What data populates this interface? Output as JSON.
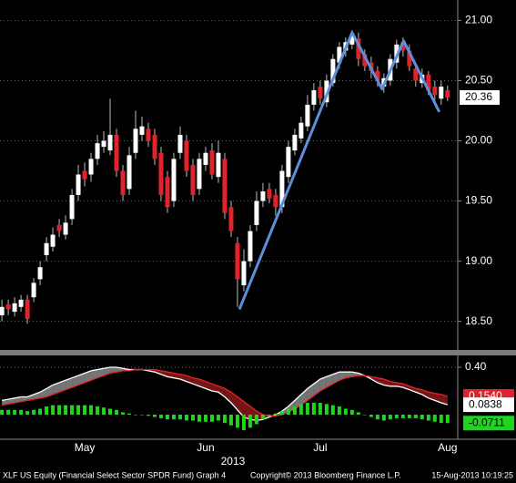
{
  "chart_data": [
    {
      "type": "candlestick",
      "categories": [
        null,
        null,
        null,
        null,
        null,
        null,
        null,
        null,
        null,
        null,
        null,
        null,
        null,
        "May",
        null,
        null,
        null,
        null,
        null,
        null,
        null,
        null,
        null,
        null,
        null,
        null,
        null,
        null,
        null,
        null,
        null,
        null,
        "Jun",
        null,
        null,
        null,
        null,
        null,
        null,
        null,
        null,
        null,
        null,
        null,
        null,
        null,
        null,
        null,
        null,
        null,
        "Jul",
        null,
        null,
        null,
        null,
        null,
        null,
        null,
        null,
        null,
        null,
        null,
        null,
        null,
        null,
        null,
        null,
        null,
        null,
        null,
        "Aug"
      ],
      "xlabel": "2013",
      "open": [
        18.55,
        18.64,
        18.58,
        18.62,
        18.68,
        18.7,
        18.85,
        19.05,
        19.12,
        19.3,
        19.22,
        19.35,
        19.55,
        19.75,
        19.72,
        19.85,
        19.95,
        19.92,
        20.05,
        19.75,
        19.6,
        19.9,
        20.05,
        20.1,
        20.05,
        19.9,
        19.7,
        19.5,
        19.9,
        20.0,
        19.8,
        19.6,
        19.8,
        19.92,
        19.7,
        19.85,
        19.45,
        19.15,
        18.8,
        19.0,
        19.3,
        19.5,
        19.6,
        19.55,
        19.45,
        19.7,
        19.92,
        20.02,
        20.12,
        20.3,
        20.45,
        20.32,
        20.48,
        20.65,
        20.75,
        20.8,
        20.85,
        20.72,
        20.65,
        20.58,
        20.45,
        20.5,
        20.65,
        20.82,
        20.75,
        20.6,
        20.48,
        20.55,
        20.45,
        20.35,
        20.42
      ],
      "high": [
        18.68,
        18.68,
        18.7,
        18.72,
        18.72,
        18.86,
        19.0,
        19.2,
        19.28,
        19.35,
        19.38,
        19.6,
        19.8,
        19.82,
        19.9,
        20.05,
        20.08,
        20.35,
        20.1,
        19.8,
        19.95,
        20.25,
        20.2,
        20.15,
        20.1,
        19.95,
        19.75,
        19.9,
        20.12,
        20.05,
        19.85,
        19.9,
        19.95,
        19.98,
        20.0,
        19.9,
        19.5,
        19.2,
        19.1,
        19.3,
        19.58,
        19.65,
        19.65,
        19.6,
        19.8,
        20.0,
        20.1,
        20.2,
        20.38,
        20.48,
        20.5,
        20.55,
        20.72,
        20.82,
        20.86,
        20.92,
        20.9,
        20.76,
        20.7,
        20.62,
        20.56,
        20.72,
        20.84,
        20.86,
        20.8,
        20.65,
        20.6,
        20.58,
        20.5,
        20.5,
        20.46
      ],
      "low": [
        18.5,
        18.55,
        18.54,
        18.58,
        18.48,
        18.66,
        18.8,
        19.0,
        19.08,
        19.2,
        19.18,
        19.3,
        19.5,
        19.62,
        19.66,
        19.8,
        19.9,
        19.88,
        19.7,
        19.5,
        19.55,
        19.85,
        20.0,
        19.95,
        19.8,
        19.5,
        19.4,
        19.45,
        19.85,
        19.7,
        19.5,
        19.55,
        19.75,
        19.68,
        19.65,
        19.35,
        19.2,
        18.62,
        18.75,
        18.95,
        19.25,
        19.45,
        19.48,
        19.38,
        19.4,
        19.65,
        19.88,
        19.98,
        20.08,
        20.25,
        20.3,
        20.28,
        20.45,
        20.6,
        20.7,
        20.76,
        20.62,
        20.58,
        20.52,
        20.45,
        20.4,
        20.46,
        20.6,
        20.7,
        20.58,
        20.45,
        20.44,
        20.38,
        20.32,
        20.3,
        20.33
      ],
      "close": [
        18.62,
        18.6,
        18.65,
        18.68,
        18.52,
        18.82,
        18.95,
        19.15,
        19.22,
        19.25,
        19.32,
        19.55,
        19.72,
        19.68,
        19.85,
        19.98,
        20.0,
        20.05,
        19.75,
        19.55,
        19.88,
        20.1,
        20.12,
        20.0,
        19.85,
        19.55,
        19.45,
        19.85,
        20.05,
        19.75,
        19.55,
        19.85,
        19.9,
        19.72,
        19.9,
        19.4,
        19.25,
        18.85,
        19.0,
        19.25,
        19.5,
        19.58,
        19.52,
        19.45,
        19.75,
        19.95,
        20.05,
        20.15,
        20.3,
        20.42,
        20.35,
        20.5,
        20.68,
        20.78,
        20.82,
        20.88,
        20.68,
        20.62,
        20.58,
        20.5,
        20.52,
        20.68,
        20.8,
        20.75,
        20.62,
        20.5,
        20.55,
        20.42,
        20.38,
        20.45,
        20.36
      ],
      "up_color": "#ffffff",
      "down_color": "#e3232c",
      "last_label": "20.36",
      "trendline": {
        "color": "#5f8fdb",
        "x": [
          37.3,
          55,
          59.7,
          63.1,
          68.7
        ],
        "y": [
          18.6,
          20.9,
          20.43,
          20.83,
          20.24
        ]
      },
      "ylim": [
        18.27,
        21.17
      ],
      "yticks": [
        {
          "value": 18.5,
          "label": "18.50"
        },
        {
          "value": 19,
          "label": "19.00"
        },
        {
          "value": 19.5,
          "label": "19.50"
        },
        {
          "value": 20,
          "label": "20.00"
        },
        {
          "value": 20.5,
          "label": "20.50"
        },
        {
          "value": 21,
          "label": "21.00"
        }
      ],
      "grid": true
    },
    {
      "type": "macd",
      "series": [
        {
          "name": "MACD",
          "kind": "line",
          "color": "#ffffff",
          "last_label": "0.0838",
          "values": [
            0.12,
            0.13,
            0.14,
            0.15,
            0.15,
            0.17,
            0.19,
            0.22,
            0.25,
            0.27,
            0.29,
            0.31,
            0.33,
            0.35,
            0.37,
            0.38,
            0.39,
            0.4,
            0.4,
            0.39,
            0.38,
            0.38,
            0.38,
            0.37,
            0.36,
            0.34,
            0.32,
            0.31,
            0.3,
            0.28,
            0.26,
            0.24,
            0.22,
            0.2,
            0.19,
            0.15,
            0.1,
            0.04,
            -0.02,
            -0.04,
            -0.05,
            -0.04,
            -0.02,
            0.0,
            0.03,
            0.07,
            0.12,
            0.17,
            0.22,
            0.26,
            0.3,
            0.32,
            0.34,
            0.36,
            0.36,
            0.36,
            0.35,
            0.33,
            0.3,
            0.27,
            0.25,
            0.24,
            0.24,
            0.23,
            0.21,
            0.19,
            0.17,
            0.14,
            0.12,
            0.1,
            0.0838
          ]
        },
        {
          "name": "Signal",
          "kind": "line",
          "color": "#e3232c",
          "last_label": "0.1540",
          "values": [
            0.08,
            0.09,
            0.1,
            0.11,
            0.12,
            0.13,
            0.14,
            0.15,
            0.17,
            0.19,
            0.21,
            0.23,
            0.25,
            0.27,
            0.29,
            0.31,
            0.33,
            0.35,
            0.36,
            0.37,
            0.37,
            0.38,
            0.38,
            0.38,
            0.38,
            0.37,
            0.36,
            0.35,
            0.34,
            0.33,
            0.31,
            0.3,
            0.28,
            0.26,
            0.24,
            0.22,
            0.19,
            0.15,
            0.11,
            0.07,
            0.03,
            0.0,
            -0.01,
            -0.01,
            0.0,
            0.02,
            0.05,
            0.08,
            0.12,
            0.16,
            0.2,
            0.23,
            0.26,
            0.29,
            0.31,
            0.32,
            0.33,
            0.33,
            0.32,
            0.31,
            0.3,
            0.28,
            0.27,
            0.26,
            0.24,
            0.22,
            0.21,
            0.19,
            0.18,
            0.17,
            0.154
          ]
        },
        {
          "name": "Histogram",
          "kind": "bar",
          "color": "#22d422",
          "last_label": "-0.0711",
          "values": [
            0.04,
            0.04,
            0.04,
            0.04,
            0.03,
            0.04,
            0.05,
            0.07,
            0.08,
            0.08,
            0.08,
            0.08,
            0.08,
            0.08,
            0.08,
            0.07,
            0.06,
            0.05,
            0.04,
            0.02,
            0.01,
            0.0,
            0.0,
            -0.01,
            -0.02,
            -0.03,
            -0.04,
            -0.04,
            -0.04,
            -0.05,
            -0.05,
            -0.06,
            -0.06,
            -0.06,
            -0.05,
            -0.07,
            -0.09,
            -0.11,
            -0.13,
            -0.11,
            -0.08,
            -0.04,
            -0.01,
            0.01,
            0.03,
            0.05,
            0.07,
            0.09,
            0.1,
            0.1,
            0.1,
            0.09,
            0.08,
            0.07,
            0.05,
            0.04,
            0.02,
            0.0,
            -0.02,
            -0.04,
            -0.05,
            -0.04,
            -0.03,
            -0.03,
            -0.03,
            -0.03,
            -0.04,
            -0.05,
            -0.06,
            -0.07,
            -0.0711
          ]
        }
      ],
      "ylim": [
        -0.192,
        0.492
      ],
      "yticks": [
        {
          "value": 0.4,
          "label": "0.40"
        }
      ]
    }
  ],
  "footer": {
    "left": "XLF US Equity (Financial Select Sector SPDR Fund) Graph 4",
    "center": "Copyright© 2013 Bloomberg Finance L.P.",
    "right": "15-Aug-2013 10:19:25"
  }
}
